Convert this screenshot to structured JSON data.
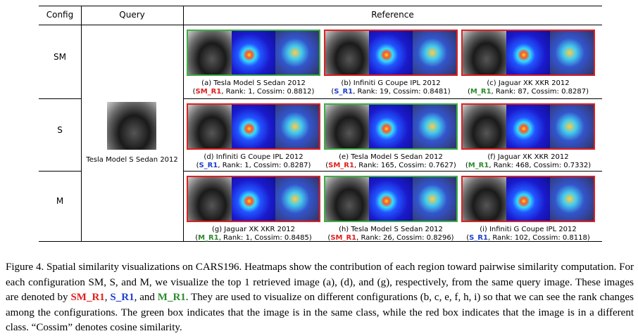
{
  "table": {
    "headers": [
      "Config",
      "Query",
      "Reference"
    ],
    "configs": [
      "SM",
      "S",
      "M"
    ],
    "query": "Tesla Model S Sedan 2012",
    "rows": [
      [
        {
          "label": "(a) Tesla Model S Sedan 2012",
          "open": "(",
          "tag": "SM_R1",
          "rest": ", Rank: 1, Cossim: 0.8812)",
          "border": "#3cb043",
          "tag_color": "#e02020"
        },
        {
          "label": "(b) Infiniti G Coupe IPL 2012",
          "open": "(",
          "tag": "S_R1",
          "rest": ", Rank: 19, Cossim: 0.8481)",
          "border": "#e02020",
          "tag_color": "#2040d0"
        },
        {
          "label": "(c) Jaguar XK XKR 2012",
          "open": "(",
          "tag": "M_R1",
          "rest": ", Rank: 87, Cossim: 0.8287)",
          "border": "#e02020",
          "tag_color": "#2e8b2e"
        }
      ],
      [
        {
          "label": "(d) Infiniti G Coupe IPL 2012",
          "open": "(",
          "tag": "S_R1",
          "rest": ", Rank: 1, Cossim: 0.8287)",
          "border": "#e02020",
          "tag_color": "#2040d0"
        },
        {
          "label": "(e) Tesla Model S Sedan 2012",
          "open": "(",
          "tag": "SM_R1",
          "rest": ", Rank: 165, Cossim: 0.7627)",
          "border": "#3cb043",
          "tag_color": "#e02020"
        },
        {
          "label": "(f) Jaguar XK XKR 2012",
          "open": "(",
          "tag": "M_R1",
          "rest": ", Rank: 468, Cossim: 0.7332)",
          "border": "#e02020",
          "tag_color": "#2e8b2e"
        }
      ],
      [
        {
          "label": "(g) Jaguar XK XKR 2012",
          "open": "(",
          "tag": "M_R1",
          "rest": ", Rank: 1, Cossim: 0.8485)",
          "border": "#e02020",
          "tag_color": "#2e8b2e"
        },
        {
          "label": "(h) Tesla Model S Sedan 2012",
          "open": "(",
          "tag": "SM_R1",
          "rest": ", Rank: 26, Cossim: 0.8296)",
          "border": "#3cb043",
          "tag_color": "#e02020"
        },
        {
          "label": "(i) Infiniti G Coupe IPL 2012",
          "open": "(",
          "tag": "S_R1",
          "rest": ", Rank: 102, Cossim: 0.8118)",
          "border": "#e02020",
          "tag_color": "#2040d0"
        }
      ]
    ]
  },
  "caption": {
    "parts": [
      {
        "text": "Figure 4. Spatial similarity visualizations on CARS196. Heatmaps show the contribution of each region toward pairwise similarity computation. For each configuration SM, S, and M, we visualize the top 1 retrieved image (a), (d), and (g), respectively, from the same query image. These images are denoted by "
      },
      {
        "text": "SM_R1",
        "color": "#e02020"
      },
      {
        "text": ", "
      },
      {
        "text": "S_R1",
        "color": "#2040d0"
      },
      {
        "text": ", and "
      },
      {
        "text": "M_R1",
        "color": "#2e8b2e"
      },
      {
        "text": ". They are used to visualize on different configurations (b, c, e, f, h, i) so that we can see the rank changes among the configurations. The green box indicates that the image is in the same class, while the red box indicates that the image is in a different class. “Cossim” denotes cosine similarity."
      }
    ]
  }
}
